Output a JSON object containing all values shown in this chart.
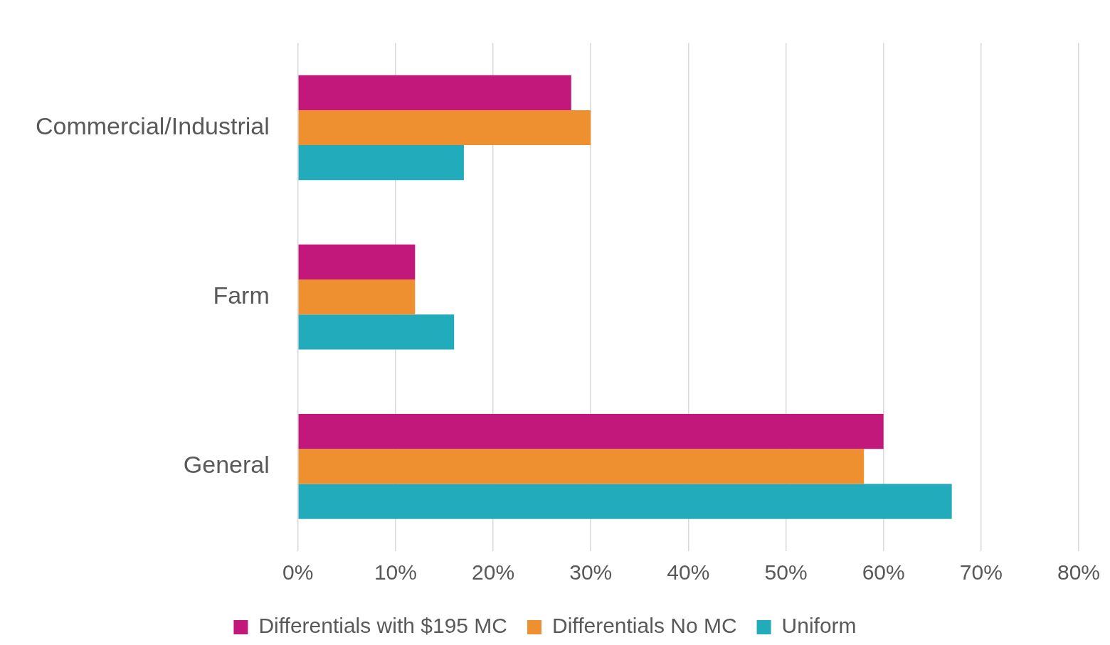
{
  "chart_data": {
    "type": "bar",
    "orientation": "horizontal",
    "categories": [
      "Commercial/Industrial",
      "Farm",
      "General"
    ],
    "series": [
      {
        "name": "Differentials with $195 MC",
        "color": "#c2177b",
        "values": [
          28,
          12,
          60
        ]
      },
      {
        "name": "Differentials No MC",
        "color": "#ee8f30",
        "values": [
          30,
          12,
          58
        ]
      },
      {
        "name": "Uniform",
        "color": "#22abbb",
        "values": [
          17,
          16,
          67
        ]
      }
    ],
    "xlim": [
      0,
      80
    ],
    "xticks": [
      {
        "value": 0,
        "label": "0%"
      },
      {
        "value": 10,
        "label": "10%"
      },
      {
        "value": 20,
        "label": "20%"
      },
      {
        "value": 30,
        "label": "30%"
      },
      {
        "value": 40,
        "label": "40%"
      },
      {
        "value": 50,
        "label": "50%"
      },
      {
        "value": 60,
        "label": "60%"
      },
      {
        "value": 70,
        "label": "70%"
      },
      {
        "value": 80,
        "label": "80%"
      }
    ],
    "grid": "x",
    "legend": "bottom"
  }
}
